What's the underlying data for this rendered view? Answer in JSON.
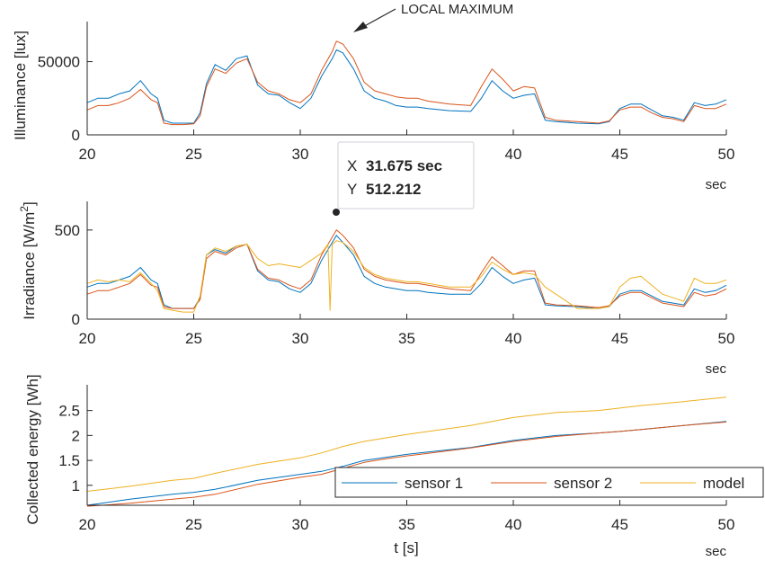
{
  "colors": {
    "sensor1": "#0072BD",
    "sensor2": "#D95319",
    "model": "#EDB120",
    "axis": "#262626",
    "datatip_value": "#3B86C2"
  },
  "chart_data": [
    {
      "type": "line",
      "ylabel": "Illuminance [lux]",
      "xunit": "sec",
      "xlim": [
        20,
        50
      ],
      "ylim": [
        0,
        70000
      ],
      "xticks": [
        20,
        25,
        30,
        35,
        40,
        45,
        50
      ],
      "yticks": [
        0,
        50000
      ],
      "ytick_labels": [
        "0",
        "50000"
      ],
      "grid": false,
      "annotation": {
        "text": "LOCAL MAXIMUM",
        "arrow_to": [
          31.7,
          62000
        ]
      },
      "x": [
        20,
        20.5,
        21,
        21.5,
        22,
        22.5,
        23,
        23.3,
        23.6,
        24,
        24.5,
        25,
        25.3,
        25.6,
        26,
        26.5,
        27,
        27.5,
        28,
        28.5,
        29,
        29.5,
        30,
        30.5,
        31,
        31.5,
        31.7,
        32,
        32.5,
        33,
        33.5,
        34,
        34.5,
        35,
        35.5,
        36,
        37,
        38,
        38.5,
        39,
        39.5,
        40,
        40.5,
        41,
        41.5,
        42,
        43,
        44,
        44.5,
        45,
        45.5,
        46,
        46.5,
        47,
        47.5,
        48,
        48.5,
        49,
        49.5,
        50
      ],
      "series": [
        {
          "name": "sensor 1",
          "values": [
            22000,
            25000,
            25000,
            28000,
            30000,
            37000,
            28000,
            25000,
            10000,
            8000,
            8000,
            8000,
            15000,
            35000,
            48000,
            44000,
            52000,
            54000,
            34000,
            28000,
            27000,
            22000,
            18000,
            25000,
            40000,
            52000,
            58000,
            56000,
            45000,
            30000,
            25000,
            23000,
            20000,
            19000,
            19000,
            18000,
            16500,
            16000,
            25000,
            37000,
            30000,
            25000,
            27000,
            28000,
            10000,
            9000,
            8000,
            7500,
            9000,
            18000,
            21000,
            21000,
            17000,
            13000,
            12000,
            10000,
            22000,
            20000,
            21000,
            24000
          ]
        },
        {
          "name": "sensor 2",
          "values": [
            17000,
            20000,
            20000,
            22000,
            25000,
            31000,
            24000,
            22000,
            8000,
            7000,
            7000,
            7500,
            13000,
            33000,
            45000,
            42000,
            49000,
            52000,
            36000,
            30000,
            28000,
            24000,
            22000,
            28000,
            44000,
            57000,
            64000,
            62000,
            52000,
            36000,
            30000,
            28000,
            26000,
            25000,
            25000,
            23000,
            21000,
            20000,
            33000,
            45000,
            38000,
            30000,
            33000,
            32000,
            12000,
            10000,
            9000,
            8000,
            9500,
            17000,
            19000,
            19000,
            15000,
            12000,
            11000,
            9000,
            20000,
            18000,
            18000,
            21000
          ]
        }
      ]
    },
    {
      "type": "line",
      "ylabel": "Irradiance [W/m²]",
      "ylabel_base": "Irradiance [W/m",
      "ylabel_sup": "2",
      "ylabel_end": "]",
      "xunit": "sec",
      "xlim": [
        20,
        50
      ],
      "ylim": [
        0,
        600
      ],
      "xticks": [
        20,
        25,
        30,
        35,
        40,
        45,
        50
      ],
      "yticks": [
        0,
        500
      ],
      "ytick_labels": [
        "0",
        "500"
      ],
      "grid": false,
      "datatip": {
        "x": 31.675,
        "y": 512.212,
        "x_label": "X",
        "x_text": "31.675 sec",
        "y_label": "Y",
        "y_text": "512.212"
      },
      "x": [
        20,
        20.5,
        21,
        21.5,
        22,
        22.5,
        23,
        23.3,
        23.6,
        24,
        24.5,
        25,
        25.3,
        25.6,
        26,
        26.5,
        27,
        27.5,
        28,
        28.5,
        29,
        29.5,
        30,
        30.5,
        31,
        31.3,
        31.4,
        31.5,
        31.7,
        32,
        32.5,
        33,
        33.5,
        34,
        34.5,
        35,
        35.5,
        36,
        37,
        38,
        38.5,
        39,
        39.5,
        40,
        40.5,
        41,
        41.5,
        42,
        43,
        44,
        44.5,
        45,
        45.5,
        46,
        46.5,
        47,
        47.5,
        48,
        48.5,
        49,
        49.5,
        50
      ],
      "series": [
        {
          "name": "sensor 1",
          "values": [
            180,
            200,
            200,
            220,
            240,
            290,
            220,
            200,
            80,
            60,
            60,
            60,
            120,
            360,
            390,
            370,
            410,
            420,
            270,
            220,
            210,
            170,
            150,
            200,
            330,
            390,
            410,
            430,
            470,
            430,
            360,
            240,
            200,
            180,
            170,
            160,
            160,
            150,
            140,
            140,
            200,
            290,
            240,
            200,
            220,
            230,
            80,
            75,
            70,
            60,
            70,
            140,
            160,
            160,
            130,
            100,
            90,
            80,
            170,
            150,
            160,
            190
          ]
        },
        {
          "name": "sensor 2",
          "values": [
            140,
            160,
            160,
            180,
            200,
            250,
            190,
            180,
            70,
            60,
            60,
            60,
            110,
            340,
            380,
            360,
            400,
            420,
            280,
            230,
            220,
            190,
            170,
            220,
            360,
            420,
            440,
            460,
            500,
            470,
            400,
            280,
            240,
            220,
            210,
            200,
            200,
            190,
            170,
            160,
            260,
            350,
            300,
            250,
            270,
            270,
            90,
            80,
            75,
            65,
            75,
            130,
            150,
            150,
            120,
            90,
            80,
            70,
            150,
            130,
            140,
            170
          ]
        },
        {
          "name": "model",
          "values": [
            200,
            220,
            210,
            220,
            210,
            260,
            200,
            160,
            60,
            50,
            40,
            40,
            130,
            360,
            400,
            380,
            410,
            420,
            340,
            300,
            310,
            300,
            290,
            330,
            370,
            420,
            50,
            420,
            440,
            430,
            380,
            290,
            250,
            230,
            220,
            210,
            210,
            200,
            180,
            180,
            240,
            320,
            280,
            250,
            260,
            250,
            180,
            140,
            60,
            60,
            70,
            180,
            230,
            240,
            190,
            140,
            120,
            100,
            230,
            200,
            200,
            220
          ]
        }
      ]
    },
    {
      "type": "line",
      "ylabel": "Collected energy [Wh]",
      "xlabel": "t [s]",
      "xunit": "sec",
      "xlim": [
        20,
        50
      ],
      "ylim": [
        0.6,
        2.8
      ],
      "xticks": [
        20,
        25,
        30,
        35,
        40,
        45,
        50
      ],
      "yticks": [
        1,
        1.5,
        2,
        2.5
      ],
      "ytick_labels": [
        "1",
        "1.5",
        "2",
        "2.5"
      ],
      "grid": false,
      "legend": {
        "placement": "bottom-right",
        "entries": [
          "sensor 1",
          "sensor 2",
          "model"
        ]
      },
      "x": [
        20,
        22,
        24,
        25,
        26,
        28,
        30,
        31,
        32,
        33,
        34,
        35,
        36,
        38,
        40,
        42,
        44,
        45,
        46,
        48,
        50
      ],
      "series": [
        {
          "name": "sensor 1",
          "values": [
            0.6,
            0.72,
            0.82,
            0.86,
            0.92,
            1.1,
            1.22,
            1.28,
            1.38,
            1.5,
            1.56,
            1.62,
            1.67,
            1.76,
            1.9,
            2.0,
            2.05,
            2.08,
            2.12,
            2.2,
            2.28
          ]
        },
        {
          "name": "sensor 2",
          "values": [
            0.58,
            0.64,
            0.72,
            0.76,
            0.82,
            1.02,
            1.16,
            1.22,
            1.34,
            1.46,
            1.53,
            1.59,
            1.64,
            1.75,
            1.88,
            1.98,
            2.05,
            2.08,
            2.12,
            2.2,
            2.27
          ]
        },
        {
          "name": "model",
          "values": [
            0.88,
            0.98,
            1.1,
            1.14,
            1.24,
            1.42,
            1.55,
            1.65,
            1.78,
            1.88,
            1.95,
            2.02,
            2.08,
            2.2,
            2.36,
            2.46,
            2.5,
            2.55,
            2.6,
            2.68,
            2.77
          ]
        }
      ]
    }
  ]
}
